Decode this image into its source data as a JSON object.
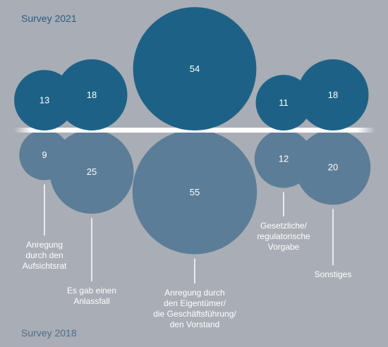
{
  "chart_data": {
    "type": "bubble",
    "series": [
      {
        "name": "Survey 2021",
        "color": "#1d6286"
      },
      {
        "name": "Survey 2018",
        "color": "#5b7d98"
      }
    ],
    "categories": [
      {
        "label": "Anregung\ndurch den\nAufsichtsrat",
        "survey_2021": 13,
        "survey_2018": 9
      },
      {
        "label": "Es gab einen\nAnlassfall",
        "survey_2021": 18,
        "survey_2018": 25
      },
      {
        "label": "Anregung durch\nden Eigentümer/\ndie Geschäftsführung/\nden Vorstand",
        "survey_2021": 54,
        "survey_2018": 55
      },
      {
        "label": "Gesetzliche/\nregulatorische\nVorgabe",
        "survey_2021": 11,
        "survey_2018": 12
      },
      {
        "label": "Sonstiges",
        "survey_2021": 18,
        "survey_2018": 20
      }
    ]
  }
}
